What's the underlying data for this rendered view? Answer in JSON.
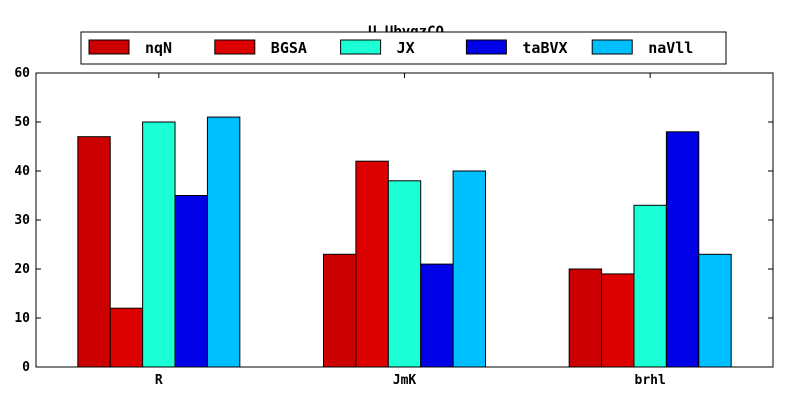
{
  "chart_data": {
    "type": "bar",
    "title": "U_UbyqzCO",
    "xlabel": "",
    "ylabel": "",
    "categories": [
      "R",
      "JmK",
      "brhl"
    ],
    "series": [
      {
        "name": "nqN",
        "color": "#cc0000",
        "values": [
          47,
          23,
          20
        ]
      },
      {
        "name": "BGSA",
        "color": "#dd0000",
        "values": [
          12,
          42,
          19
        ]
      },
      {
        "name": "JX",
        "color": "#1affd5",
        "values": [
          50,
          38,
          33
        ]
      },
      {
        "name": "taBVX",
        "color": "#0000e6",
        "values": [
          35,
          21,
          48
        ]
      },
      {
        "name": "naVll",
        "color": "#00bfff",
        "values": [
          51,
          40,
          23
        ]
      }
    ],
    "ylim": [
      0,
      60
    ],
    "yticks": [
      0,
      10,
      20,
      30,
      40,
      50,
      60
    ],
    "grid": false,
    "legend_position": "top-center"
  }
}
